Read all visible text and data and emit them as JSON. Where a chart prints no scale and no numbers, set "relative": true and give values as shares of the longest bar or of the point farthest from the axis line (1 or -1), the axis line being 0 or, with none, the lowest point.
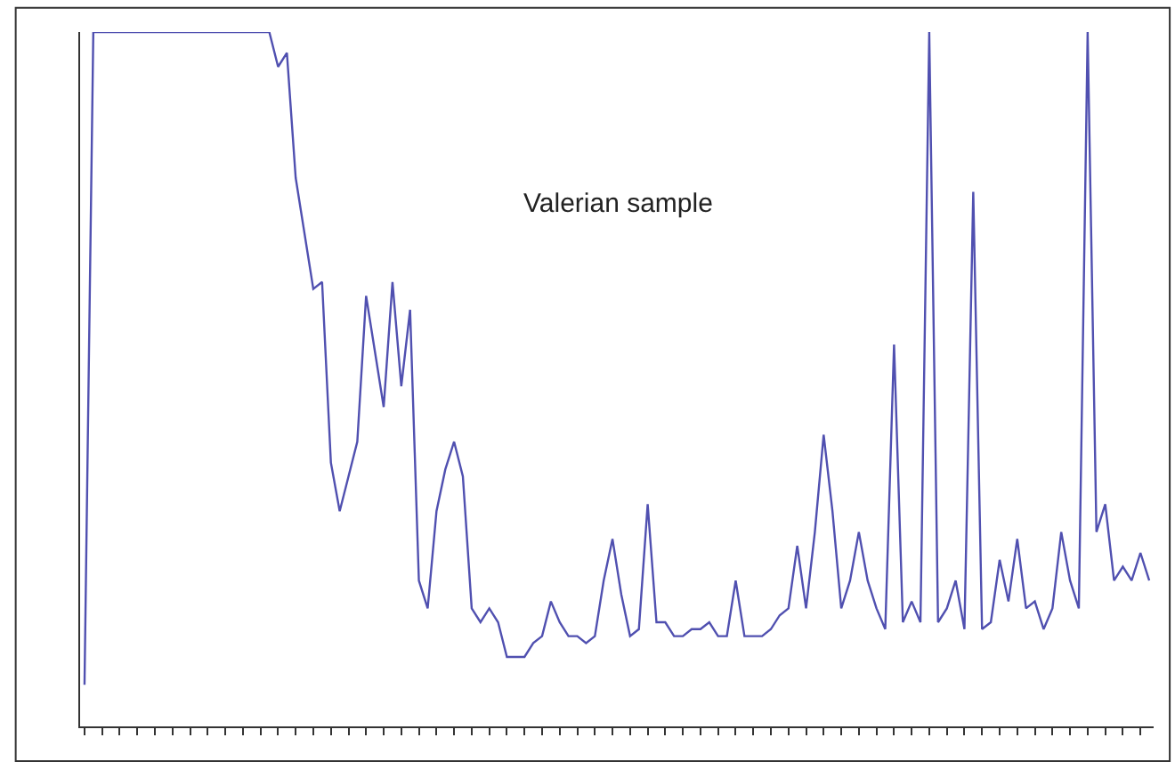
{
  "chart_data": {
    "type": "line",
    "title": "Valerian sample",
    "relative": true,
    "marker": "none",
    "line_style": "solid",
    "categories": [
      null,
      null,
      null,
      null,
      null,
      null,
      null,
      null,
      null,
      null,
      null,
      null,
      null,
      null,
      null,
      null,
      null,
      null,
      null,
      null,
      null,
      null,
      null,
      null,
      null,
      null,
      null,
      null,
      null,
      null,
      null,
      null,
      null,
      null,
      null,
      null,
      null,
      null,
      null,
      null,
      null,
      null,
      null,
      null,
      null,
      null,
      null,
      null,
      null,
      null,
      null,
      null,
      null,
      null,
      null,
      null,
      null,
      null,
      null,
      null,
      null,
      null,
      null,
      null,
      null,
      null,
      null,
      null,
      null,
      null,
      null,
      null,
      null,
      null,
      null,
      null,
      null,
      null,
      null,
      null,
      null,
      null,
      null,
      null,
      null,
      null,
      null,
      null,
      null,
      null,
      null,
      null,
      null,
      null,
      null,
      null,
      null,
      null,
      null,
      null,
      null,
      null,
      null,
      null,
      null,
      null,
      null,
      null,
      null,
      null,
      null,
      null,
      null,
      null,
      null,
      null,
      null,
      null,
      null,
      null,
      null,
      null
    ],
    "series": [
      {
        "color": "#5050b0",
        "values": [
          0.06,
          1,
          1,
          1,
          1,
          1,
          1,
          1,
          1,
          1,
          1,
          1,
          1,
          1,
          1,
          1,
          1,
          1,
          1,
          1,
          1,
          1,
          0.95,
          0.97,
          0.79,
          0.71,
          0.63,
          0.64,
          0.38,
          0.31,
          0.36,
          0.41,
          0.62,
          0.54,
          0.46,
          0.64,
          0.49,
          0.6,
          0.21,
          0.17,
          0.31,
          0.37,
          0.41,
          0.36,
          0.17,
          0.15,
          0.17,
          0.15,
          0.1,
          0.1,
          0.1,
          0.12,
          0.13,
          0.18,
          0.15,
          0.13,
          0.13,
          0.12,
          0.13,
          0.21,
          0.27,
          0.19,
          0.13,
          0.14,
          0.32,
          0.15,
          0.15,
          0.13,
          0.13,
          0.14,
          0.14,
          0.15,
          0.13,
          0.13,
          0.21,
          0.13,
          0.13,
          0.13,
          0.14,
          0.16,
          0.17,
          0.26,
          0.17,
          0.28,
          0.42,
          0.31,
          0.17,
          0.21,
          0.28,
          0.21,
          0.17,
          0.14,
          0.55,
          0.15,
          0.18,
          0.15,
          1,
          0.15,
          0.17,
          0.21,
          0.14,
          0.77,
          0.14,
          0.15,
          0.24,
          0.18,
          0.27,
          0.17,
          0.18,
          0.14,
          0.17,
          0.28,
          0.21,
          0.17,
          1,
          0.28,
          0.32,
          0.21,
          0.23,
          0.21,
          0.25,
          0.21
        ]
      }
    ]
  }
}
